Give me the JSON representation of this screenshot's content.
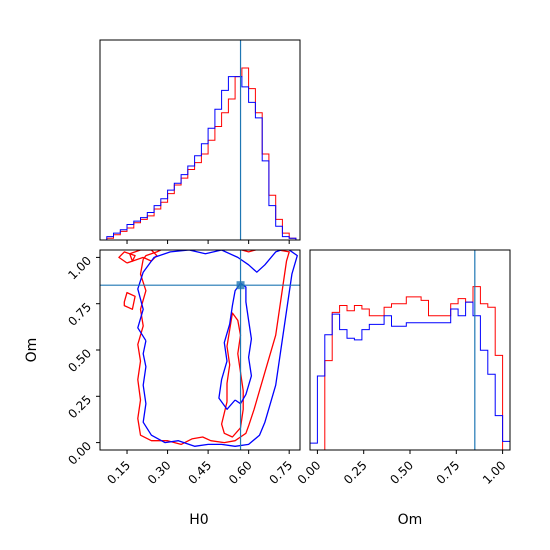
{
  "chart_data": {
    "type": "corner",
    "series_colors": {
      "series_a": "#ff0000",
      "series_b": "#0000ff",
      "truth": "#1f77b4"
    },
    "parameters": [
      {
        "label": "H0",
        "range": [
          0.05,
          0.79
        ],
        "ticks": [
          "0.15",
          "0.30",
          "0.45",
          "0.60",
          "0.75"
        ],
        "tick_values": [
          0.15,
          0.3,
          0.45,
          0.6,
          0.75
        ],
        "truth": 0.57
      },
      {
        "label": "Om",
        "range": [
          -0.04,
          1.04
        ],
        "ticks": [
          "0.00",
          "0.25",
          "0.50",
          "0.75",
          "1.00"
        ],
        "tick_values": [
          0.0,
          0.25,
          0.5,
          0.75,
          1.0
        ],
        "truth": 0.85
      }
    ],
    "histograms": [
      {
        "parameter": "H0",
        "bin_edges": [
          0.05,
          0.075,
          0.1,
          0.125,
          0.15,
          0.175,
          0.2,
          0.225,
          0.25,
          0.275,
          0.3,
          0.325,
          0.35,
          0.375,
          0.4,
          0.425,
          0.45,
          0.475,
          0.5,
          0.525,
          0.55,
          0.575,
          0.6,
          0.625,
          0.65,
          0.675,
          0.7,
          0.725,
          0.75,
          0.775,
          0.8
        ],
        "series_a": [
          0,
          0.01,
          0.03,
          0.05,
          0.07,
          0.1,
          0.12,
          0.14,
          0.18,
          0.22,
          0.27,
          0.32,
          0.36,
          0.41,
          0.45,
          0.5,
          0.58,
          0.66,
          0.74,
          0.82,
          0.95,
          1.0,
          0.88,
          0.74,
          0.5,
          0.26,
          0.12,
          0.04,
          0.01,
          0,
          0
        ],
        "series_b": [
          0,
          0.02,
          0.04,
          0.06,
          0.09,
          0.11,
          0.13,
          0.16,
          0.2,
          0.24,
          0.29,
          0.33,
          0.38,
          0.43,
          0.49,
          0.56,
          0.65,
          0.76,
          0.87,
          0.95,
          0.95,
          0.89,
          0.8,
          0.71,
          0.46,
          0.2,
          0.08,
          0.02,
          0.01,
          0,
          0
        ]
      },
      {
        "parameter": "Om",
        "bin_edges": [
          -0.04,
          0.0,
          0.04,
          0.08,
          0.12,
          0.16,
          0.2,
          0.24,
          0.28,
          0.32,
          0.36,
          0.4,
          0.44,
          0.48,
          0.52,
          0.56,
          0.6,
          0.64,
          0.68,
          0.72,
          0.76,
          0.8,
          0.84,
          0.88,
          0.92,
          0.96,
          1.0,
          1.04
        ],
        "series_a": [
          0,
          0,
          0.52,
          0.8,
          0.84,
          0.81,
          0.84,
          0.82,
          0.78,
          0.78,
          0.83,
          0.85,
          0.85,
          0.89,
          0.89,
          0.87,
          0.78,
          0.78,
          0.78,
          0.85,
          0.88,
          0.86,
          0.95,
          0.85,
          0.83,
          0.55,
          0,
          0
        ],
        "series_b": [
          0.04,
          0.43,
          0.67,
          0.79,
          0.7,
          0.65,
          0.64,
          0.7,
          0.73,
          0.73,
          0.78,
          0.72,
          0.72,
          0.74,
          0.74,
          0.74,
          0.74,
          0.74,
          0.74,
          0.82,
          0.78,
          0.86,
          0.78,
          0.58,
          0.44,
          0.2,
          0.05,
          0.05
        ]
      }
    ],
    "contours_2d": {
      "x_parameter": "H0",
      "y_parameter": "Om",
      "series_a": [
        [
          [
            0.21,
            1.0
          ],
          [
            0.17,
            0.98
          ],
          [
            0.16,
            1.02
          ],
          [
            0.2,
            1.04
          ],
          [
            0.24,
            1.04
          ],
          [
            0.26,
            1.01
          ],
          [
            0.24,
            0.98
          ],
          [
            0.21,
            1.0
          ]
        ],
        [
          [
            0.14,
            0.76
          ],
          [
            0.15,
            0.81
          ],
          [
            0.18,
            0.79
          ],
          [
            0.17,
            0.72
          ],
          [
            0.14,
            0.74
          ],
          [
            0.14,
            0.76
          ]
        ],
        [
          [
            0.15,
            0.97
          ],
          [
            0.12,
            1.0
          ],
          [
            0.14,
            1.03
          ],
          [
            0.18,
            1.01
          ],
          [
            0.17,
            0.98
          ],
          [
            0.15,
            0.97
          ]
        ],
        [
          [
            0.21,
            0.99
          ],
          [
            0.2,
            0.91
          ],
          [
            0.22,
            0.82
          ],
          [
            0.2,
            0.72
          ],
          [
            0.21,
            0.63
          ],
          [
            0.19,
            0.53
          ],
          [
            0.2,
            0.44
          ],
          [
            0.19,
            0.34
          ],
          [
            0.2,
            0.23
          ],
          [
            0.19,
            0.13
          ],
          [
            0.2,
            0.04
          ],
          [
            0.24,
            0.01
          ],
          [
            0.3,
            0.01
          ],
          [
            0.35,
            -0.01
          ],
          [
            0.39,
            0.02
          ],
          [
            0.43,
            0.03
          ],
          [
            0.46,
            0.01
          ],
          [
            0.51,
            0.0
          ],
          [
            0.55,
            0.01
          ],
          [
            0.57,
            0.03
          ],
          [
            0.59,
            0.05
          ],
          [
            0.6,
            0.09
          ],
          [
            0.62,
            0.18
          ],
          [
            0.64,
            0.28
          ],
          [
            0.66,
            0.38
          ],
          [
            0.68,
            0.48
          ],
          [
            0.7,
            0.58
          ],
          [
            0.71,
            0.68
          ],
          [
            0.72,
            0.78
          ],
          [
            0.73,
            0.88
          ],
          [
            0.74,
            0.98
          ],
          [
            0.75,
            1.03
          ],
          [
            0.71,
            1.04
          ],
          [
            0.65,
            1.05
          ],
          [
            0.6,
            1.03
          ],
          [
            0.55,
            1.05
          ],
          [
            0.5,
            1.04
          ],
          [
            0.45,
            1.05
          ],
          [
            0.4,
            1.04
          ],
          [
            0.34,
            1.05
          ],
          [
            0.29,
            1.05
          ],
          [
            0.26,
            1.03
          ],
          [
            0.22,
            1.01
          ],
          [
            0.21,
            0.99
          ]
        ],
        [
          [
            0.52,
            0.22
          ],
          [
            0.51,
            0.16
          ],
          [
            0.5,
            0.1
          ],
          [
            0.51,
            0.05
          ],
          [
            0.54,
            0.03
          ],
          [
            0.57,
            0.08
          ],
          [
            0.58,
            0.18
          ],
          [
            0.58,
            0.28
          ],
          [
            0.57,
            0.38
          ],
          [
            0.56,
            0.48
          ],
          [
            0.57,
            0.58
          ],
          [
            0.56,
            0.66
          ],
          [
            0.54,
            0.7
          ],
          [
            0.53,
            0.61
          ],
          [
            0.52,
            0.52
          ],
          [
            0.53,
            0.42
          ],
          [
            0.52,
            0.32
          ],
          [
            0.52,
            0.22
          ]
        ]
      ],
      "series_b": [
        [
          [
            0.22,
            0.55
          ],
          [
            0.19,
            0.62
          ],
          [
            0.21,
            0.72
          ],
          [
            0.19,
            0.83
          ],
          [
            0.21,
            0.92
          ],
          [
            0.25,
            1.0
          ],
          [
            0.31,
            1.03
          ],
          [
            0.38,
            1.04
          ],
          [
            0.44,
            1.02
          ],
          [
            0.5,
            1.04
          ],
          [
            0.56,
            1.0
          ],
          [
            0.6,
            0.96
          ],
          [
            0.63,
            0.92
          ],
          [
            0.66,
            0.96
          ],
          [
            0.7,
            1.03
          ],
          [
            0.74,
            1.05
          ],
          [
            0.78,
            1.01
          ],
          [
            0.76,
            0.91
          ],
          [
            0.75,
            0.81
          ],
          [
            0.74,
            0.71
          ],
          [
            0.73,
            0.61
          ],
          [
            0.72,
            0.51
          ],
          [
            0.71,
            0.41
          ],
          [
            0.7,
            0.31
          ],
          [
            0.68,
            0.21
          ],
          [
            0.66,
            0.11
          ],
          [
            0.64,
            0.04
          ],
          [
            0.6,
            -0.01
          ],
          [
            0.55,
            -0.02
          ],
          [
            0.5,
            -0.01
          ],
          [
            0.45,
            -0.01
          ],
          [
            0.4,
            -0.02
          ],
          [
            0.34,
            0.01
          ],
          [
            0.29,
            0.0
          ],
          [
            0.24,
            0.04
          ],
          [
            0.21,
            0.11
          ],
          [
            0.22,
            0.21
          ],
          [
            0.21,
            0.31
          ],
          [
            0.22,
            0.41
          ],
          [
            0.21,
            0.48
          ],
          [
            0.22,
            0.55
          ]
        ],
        [
          [
            0.55,
            0.23
          ],
          [
            0.52,
            0.18
          ],
          [
            0.49,
            0.24
          ],
          [
            0.5,
            0.34
          ],
          [
            0.52,
            0.44
          ],
          [
            0.51,
            0.54
          ],
          [
            0.53,
            0.64
          ],
          [
            0.54,
            0.74
          ],
          [
            0.55,
            0.82
          ],
          [
            0.57,
            0.86
          ],
          [
            0.59,
            0.84
          ],
          [
            0.59,
            0.76
          ],
          [
            0.6,
            0.66
          ],
          [
            0.61,
            0.56
          ],
          [
            0.6,
            0.46
          ],
          [
            0.61,
            0.36
          ],
          [
            0.59,
            0.26
          ],
          [
            0.57,
            0.21
          ],
          [
            0.55,
            0.23
          ]
        ]
      ]
    },
    "xlabels": [
      "H0",
      "Om"
    ],
    "ylabel": "Om"
  }
}
